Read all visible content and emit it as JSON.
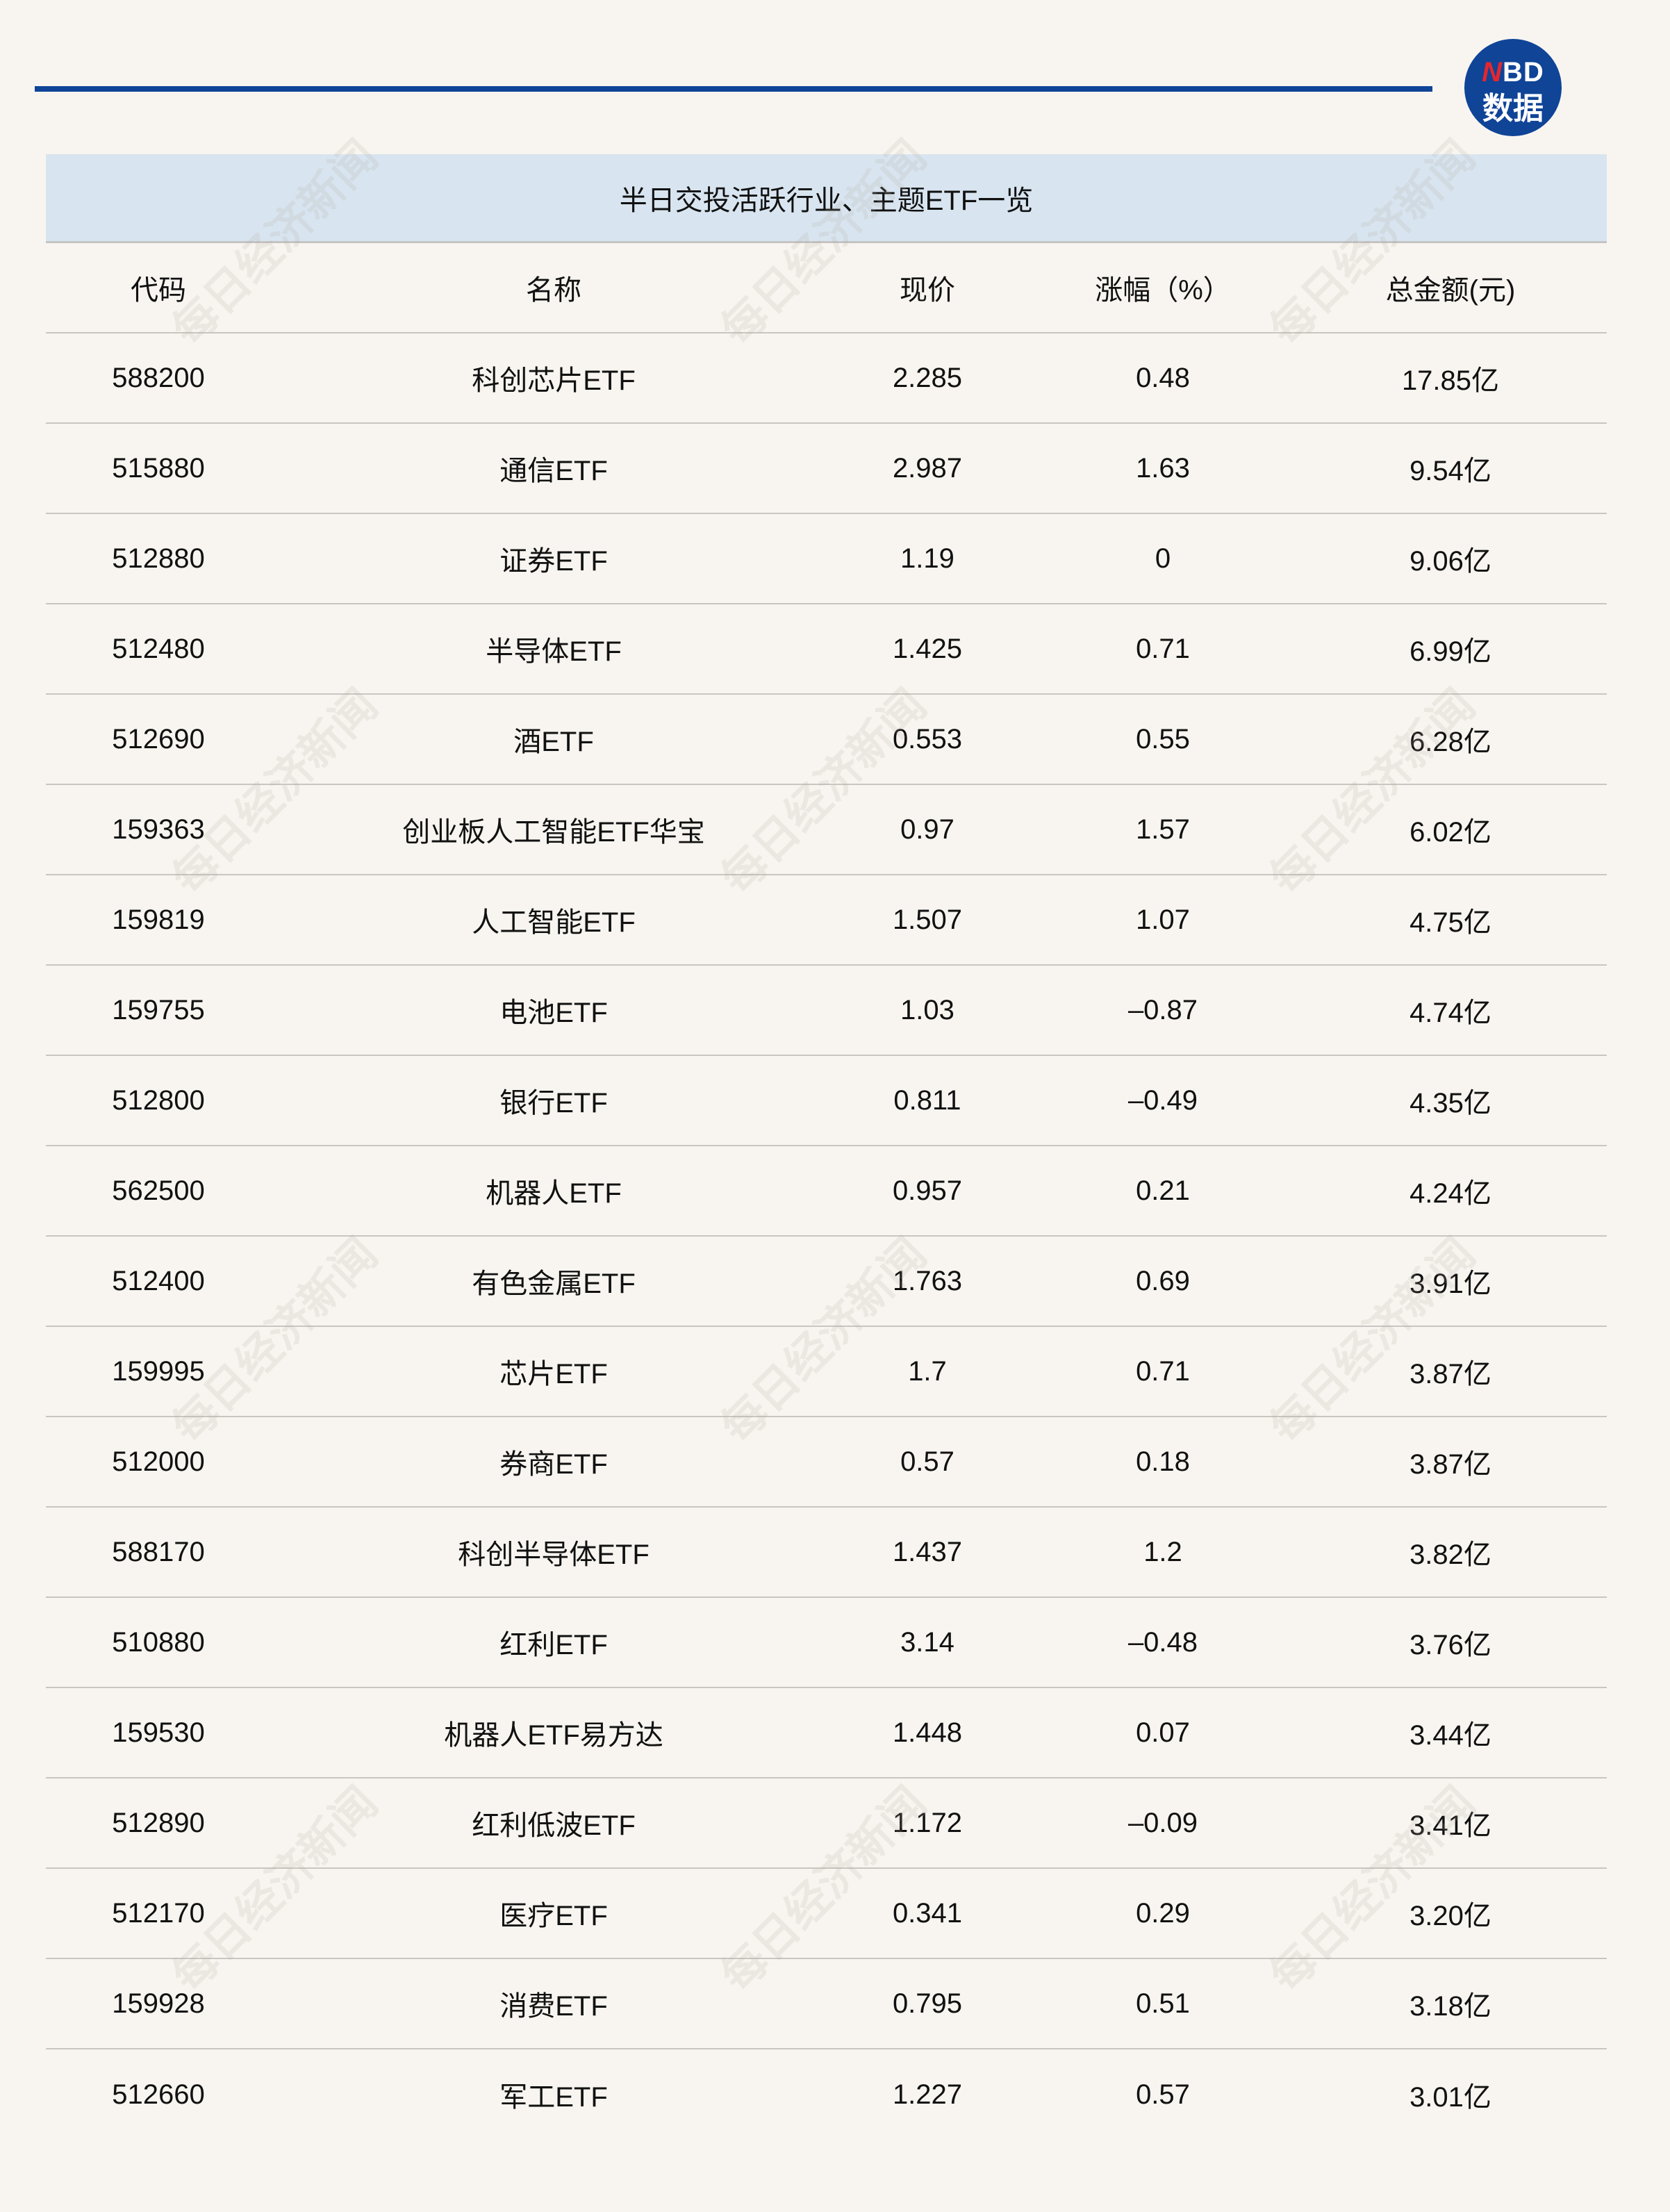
{
  "logo": {
    "brand": "NBD",
    "brand_first": "N",
    "brand_rest": "BD",
    "subtitle": "数据"
  },
  "watermark": "每日经济新闻",
  "table": {
    "title": "半日交投活跃行业、主题ETF一览",
    "columns": [
      "代码",
      "名称",
      "现价",
      "涨幅（%）",
      "总金额(元)"
    ],
    "rows": [
      [
        "588200",
        "科创芯片ETF",
        "2.285",
        "0.48",
        "17.85亿"
      ],
      [
        "515880",
        "通信ETF",
        "2.987",
        "1.63",
        "9.54亿"
      ],
      [
        "512880",
        "证券ETF",
        "1.19",
        "0",
        "9.06亿"
      ],
      [
        "512480",
        "半导体ETF",
        "1.425",
        "0.71",
        "6.99亿"
      ],
      [
        "512690",
        "酒ETF",
        "0.553",
        "0.55",
        "6.28亿"
      ],
      [
        "159363",
        "创业板人工智能ETF华宝",
        "0.97",
        "1.57",
        "6.02亿"
      ],
      [
        "159819",
        "人工智能ETF",
        "1.507",
        "1.07",
        "4.75亿"
      ],
      [
        "159755",
        "电池ETF",
        "1.03",
        "–0.87",
        "4.74亿"
      ],
      [
        "512800",
        "银行ETF",
        "0.811",
        "–0.49",
        "4.35亿"
      ],
      [
        "562500",
        "机器人ETF",
        "0.957",
        "0.21",
        "4.24亿"
      ],
      [
        "512400",
        "有色金属ETF",
        "1.763",
        "0.69",
        "3.91亿"
      ],
      [
        "159995",
        "芯片ETF",
        "1.7",
        "0.71",
        "3.87亿"
      ],
      [
        "512000",
        "券商ETF",
        "0.57",
        "0.18",
        "3.87亿"
      ],
      [
        "588170",
        "科创半导体ETF",
        "1.437",
        "1.2",
        "3.82亿"
      ],
      [
        "510880",
        "红利ETF",
        "3.14",
        "–0.48",
        "3.76亿"
      ],
      [
        "159530",
        "机器人ETF易方达",
        "1.448",
        "0.07",
        "3.44亿"
      ],
      [
        "512890",
        "红利低波ETF",
        "1.172",
        "–0.09",
        "3.41亿"
      ],
      [
        "512170",
        "医疗ETF",
        "0.341",
        "0.29",
        "3.20亿"
      ],
      [
        "159928",
        "消费ETF",
        "0.795",
        "0.51",
        "3.18亿"
      ],
      [
        "512660",
        "军工ETF",
        "1.227",
        "0.57",
        "3.01亿"
      ]
    ]
  },
  "colors": {
    "accent": "#0f4497",
    "title_band": "#d8e5f0",
    "background": "#f8f5f0",
    "logo_red": "#e5262e"
  }
}
